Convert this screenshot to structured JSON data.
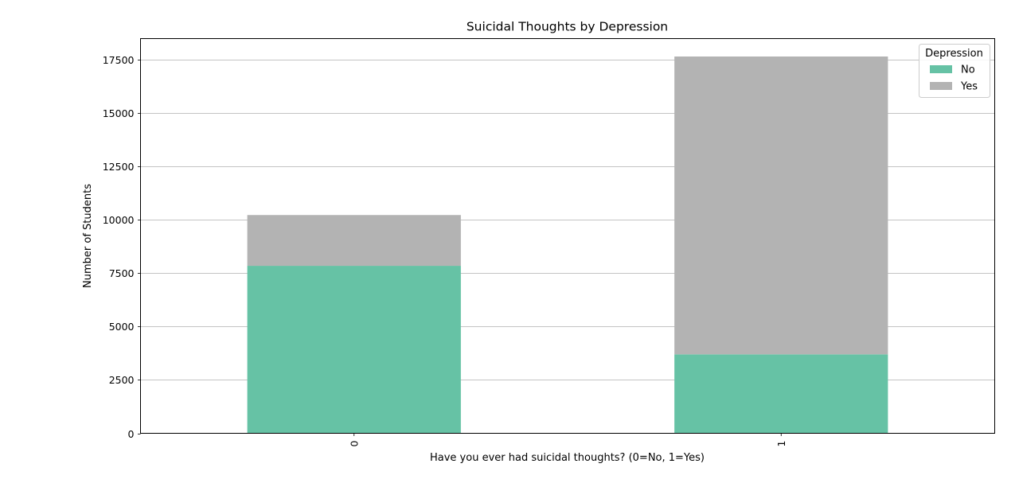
{
  "chart_data": {
    "type": "bar",
    "stacked": true,
    "title": "Suicidal Thoughts by Depression",
    "xlabel": "Have you ever had suicidal thoughts? (0=No, 1=Yes)",
    "ylabel": "Number of Students",
    "categories": [
      "0",
      "1"
    ],
    "series": [
      {
        "name": "No",
        "values": [
          7850,
          3700
        ],
        "color": "#66c2a5"
      },
      {
        "name": "Yes",
        "values": [
          2380,
          13960
        ],
        "color": "#b3b3b3"
      }
    ],
    "ylim": [
      0,
      18500
    ],
    "yticks": [
      0,
      2500,
      5000,
      7500,
      10000,
      12500,
      15000,
      17500
    ],
    "ytick_labels": [
      "0",
      "2500",
      "5000",
      "7500",
      "10000",
      "12500",
      "15000",
      "17500"
    ],
    "grid": true,
    "grid_axis": "y",
    "legend": {
      "title": "Depression",
      "placement": "top-right"
    },
    "xtick_rotation": "vertical"
  }
}
